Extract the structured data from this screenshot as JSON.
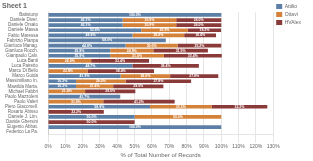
{
  "chart_data": {
    "type": "bar",
    "orientation": "horizontal",
    "stacked": true,
    "title": "Sheet 1",
    "xlabel": "% of Total Number of Records",
    "categories": [
      "Batistunp",
      "Daniele Diver.",
      "Daniele Orsato",
      "Daniele Massa",
      "Fabio Maressa",
      "Fabrizio Pianpa",
      "Gianluca Manag.",
      "Gianluca Rocch.",
      "Gianpaolo Calv.",
      "Luca Banti",
      "Luca Pairetto",
      "Marco Di Bello",
      "Marco Guida",
      "Massimiliano In.",
      "Mawilda Marta.",
      "Michael Fabbri",
      "Paolo Mazzoleni",
      "Paolo Valeri",
      "Piero Giacomell.",
      "Rosario Abisso",
      "Daniele J. Lim.",
      "Davide Ghersini",
      "Eugenio Abbat.",
      "Federico La Pa."
    ],
    "series": [
      {
        "name": "Attilio",
        "color": "#5b7fa6",
        "values": [
          100.0,
          43.1,
          43.1,
          53.8,
          48.8,
          68.0,
          44.8,
          35.9,
          35.9,
          0.0,
          48.7,
          0.0,
          41.9,
          16.2,
          16.2,
          0.0,
          41.7,
          0.0,
          58.9,
          0.0,
          50.0,
          0.0,
          100.0,
          0.0
        ],
        "value_labels": [
          "100.0%",
          "43.1%",
          "43.1%",
          "53.8%",
          "48.8%",
          "68.0%",
          "44.8%",
          "35.9%",
          "35.9%",
          null,
          "48.7%",
          null,
          "41.9%",
          "16.2%",
          "16.2%",
          null,
          "41.7%",
          null,
          "58.9%",
          null,
          "50.0%",
          null,
          "100.0%",
          null
        ]
      },
      {
        "name": "Ottavi",
        "color": "#d4813a",
        "values": [
          0.0,
          30.9,
          30.9,
          26.9,
          29.8,
          0.0,
          30.0,
          24.9,
          31.0,
          24.9,
          0.0,
          22.8,
          28.6,
          28.6,
          21.4,
          21.4,
          0.0,
          31.9,
          35.5,
          0.0,
          50.0,
          0.0,
          0.0,
          0.0
        ],
        "value_labels": [
          null,
          "30.9%",
          "30.9%",
          "26.9%",
          "29.8%",
          null,
          "30.0%",
          "24.9%",
          "31.0%",
          "24.9%",
          null,
          "22.8%",
          "28.6%",
          "28.6%",
          "21.4%",
          "21.4%",
          null,
          "31.9%",
          "35.5%",
          null,
          "50.0%",
          null,
          null,
          null
        ]
      },
      {
        "name": "HVAlex",
        "color": "#8b3a3a",
        "values": [
          0.0,
          26.0,
          26.0,
          19.2,
          18.4,
          0.0,
          25.2,
          31.5,
          33.4,
          33.4,
          38.4,
          38.4,
          27.8,
          37.8,
          29.0,
          29.0,
          0.0,
          41.2,
          32.2,
          32.2,
          0.0,
          50.0,
          0.0,
          0.0
        ],
        "value_labels": [
          null,
          "26.0%",
          "26.0%",
          "19.2%",
          "18.4%",
          null,
          "25.2%",
          "31.5%",
          "33.4%",
          "33.4%",
          "38.4%",
          "38.4%",
          "27.8%",
          "37.8%",
          "29.0%",
          "29.0%",
          null,
          "41.2%",
          "32.2%",
          "32.2%",
          null,
          "50.0%",
          null,
          null
        ]
      }
    ],
    "xlim": [
      0,
      130
    ],
    "xticks": [
      {
        "value": 0,
        "label": "0%"
      },
      {
        "value": 10,
        "label": "10%"
      },
      {
        "value": 20,
        "label": "20%"
      },
      {
        "value": 30,
        "label": "30%"
      },
      {
        "value": 40,
        "label": "40%"
      },
      {
        "value": 50,
        "label": "50%"
      },
      {
        "value": 60,
        "label": "60%"
      },
      {
        "value": 70,
        "label": "70%"
      },
      {
        "value": 80,
        "label": "80%"
      },
      {
        "value": 90,
        "label": "90%"
      },
      {
        "value": 100,
        "label": "100%"
      },
      {
        "value": 110,
        "label": "110%"
      },
      {
        "value": 120,
        "label": "120%"
      },
      {
        "value": 130,
        "label": "130%"
      }
    ],
    "grid": true,
    "legend": "right",
    "data_labels": true
  }
}
